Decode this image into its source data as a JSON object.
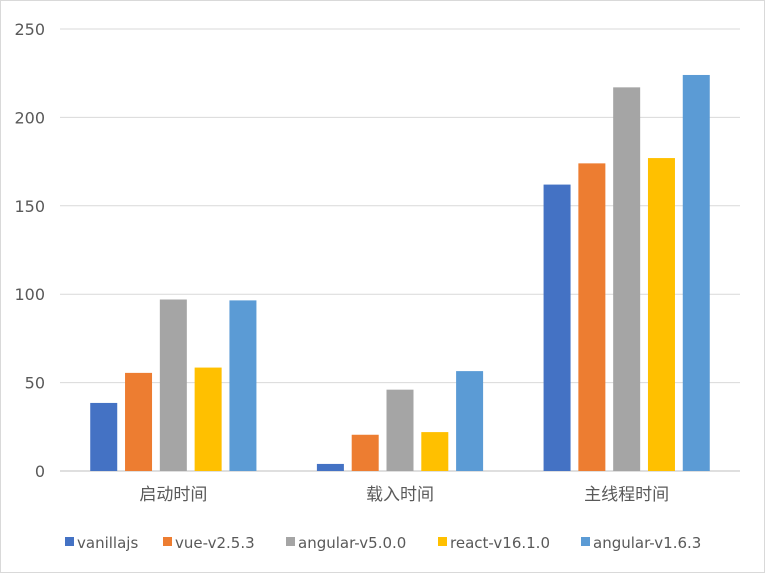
{
  "chart_data": {
    "type": "bar",
    "categories": [
      "启动时间",
      "载入时间",
      "主线程时间"
    ],
    "series": [
      {
        "name": "vanillajs",
        "values": [
          38.5,
          4,
          162
        ],
        "color": "#4472c4"
      },
      {
        "name": "vue-v2.5.3",
        "values": [
          55.5,
          20.5,
          174
        ],
        "color": "#ed7d31"
      },
      {
        "name": "angular-v5.0.0",
        "values": [
          97,
          46,
          217
        ],
        "color": "#a5a5a5"
      },
      {
        "name": "react-v16.1.0",
        "values": [
          58.5,
          22,
          177
        ],
        "color": "#ffc000"
      },
      {
        "name": "angular-v1.6.3",
        "values": [
          96.5,
          56.5,
          224
        ],
        "color": "#5b9bd5"
      }
    ],
    "yticks": [
      0,
      50,
      100,
      150,
      200,
      250
    ],
    "ylim": [
      0,
      250
    ],
    "grid": true,
    "legend": "bottom"
  }
}
